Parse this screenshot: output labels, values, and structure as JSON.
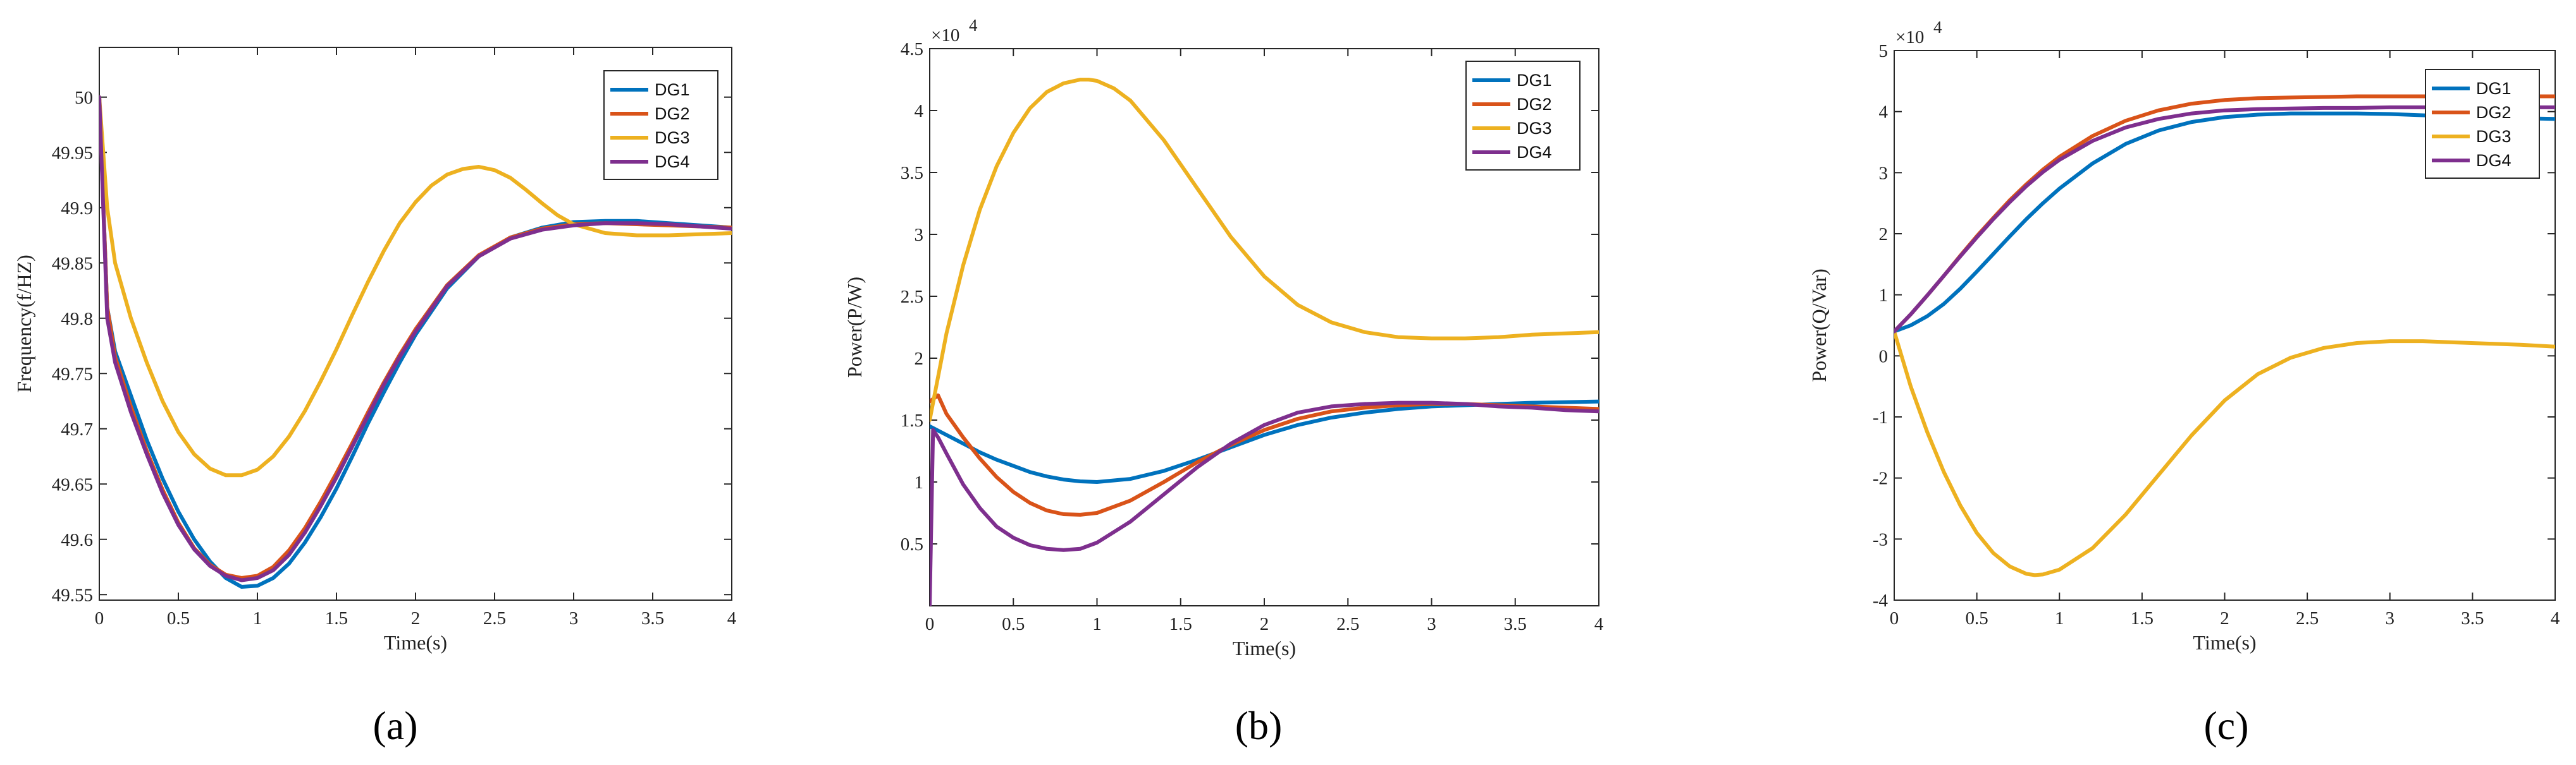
{
  "chart_data": [
    {
      "type": "line",
      "panel_label": "a",
      "panel_label_text": "(a)",
      "xlabel": "Time(s)",
      "ylabel": "Frequency(f/HZ)",
      "xlim": [
        0,
        4
      ],
      "ylim": [
        49.545,
        50.045
      ],
      "xticks": [
        0,
        0.5,
        1,
        1.5,
        2,
        2.5,
        3,
        3.5,
        4
      ],
      "xtick_labels": [
        "0",
        "0.5",
        "1",
        "1.5",
        "2",
        "2.5",
        "3",
        "3.5",
        "4"
      ],
      "yticks": [
        49.55,
        49.6,
        49.65,
        49.7,
        49.75,
        49.8,
        49.85,
        49.9,
        49.95,
        50
      ],
      "ytick_labels": [
        "49.55",
        "49.6",
        "49.65",
        "49.7",
        "49.75",
        "49.8",
        "49.85",
        "49.9",
        "49.95",
        "50"
      ],
      "exponent_label": "",
      "legend_position": "top-right",
      "series": [
        {
          "name": "DG1",
          "color": "#0072BD",
          "x": [
            0,
            0.05,
            0.1,
            0.2,
            0.3,
            0.4,
            0.5,
            0.6,
            0.7,
            0.8,
            0.9,
            1.0,
            1.1,
            1.2,
            1.3,
            1.4,
            1.5,
            1.6,
            1.7,
            1.8,
            1.9,
            2.0,
            2.2,
            2.4,
            2.6,
            2.8,
            3.0,
            3.2,
            3.4,
            3.6,
            3.8,
            4.0
          ],
          "values": [
            50.0,
            49.81,
            49.77,
            49.73,
            49.69,
            49.655,
            49.625,
            49.6,
            49.58,
            49.565,
            49.557,
            49.558,
            49.565,
            49.578,
            49.597,
            49.62,
            49.646,
            49.675,
            49.705,
            49.733,
            49.76,
            49.785,
            49.827,
            49.856,
            49.873,
            49.882,
            49.887,
            49.888,
            49.888,
            49.886,
            49.884,
            49.882
          ]
        },
        {
          "name": "DG2",
          "color": "#D95319",
          "x": [
            0,
            0.05,
            0.1,
            0.2,
            0.3,
            0.4,
            0.5,
            0.6,
            0.7,
            0.8,
            0.9,
            1.0,
            1.1,
            1.2,
            1.3,
            1.4,
            1.5,
            1.6,
            1.7,
            1.8,
            1.9,
            2.0,
            2.2,
            2.4,
            2.6,
            2.8,
            3.0,
            3.2,
            3.4,
            3.6,
            3.8,
            4.0
          ],
          "values": [
            50.0,
            49.81,
            49.765,
            49.72,
            49.68,
            49.645,
            49.615,
            49.592,
            49.577,
            49.568,
            49.565,
            49.567,
            49.575,
            49.59,
            49.61,
            49.634,
            49.66,
            49.687,
            49.715,
            49.742,
            49.767,
            49.79,
            49.83,
            49.857,
            49.873,
            49.881,
            49.885,
            49.886,
            49.885,
            49.884,
            49.883,
            49.882
          ]
        },
        {
          "name": "DG3",
          "color": "#EDB120",
          "x": [
            0,
            0.05,
            0.1,
            0.2,
            0.3,
            0.4,
            0.5,
            0.6,
            0.7,
            0.8,
            0.9,
            1.0,
            1.1,
            1.2,
            1.3,
            1.4,
            1.5,
            1.6,
            1.7,
            1.8,
            1.9,
            2.0,
            2.1,
            2.2,
            2.3,
            2.4,
            2.5,
            2.6,
            2.7,
            2.8,
            2.9,
            3.0,
            3.2,
            3.4,
            3.6,
            3.8,
            4.0
          ],
          "values": [
            50.0,
            49.9,
            49.85,
            49.8,
            49.76,
            49.725,
            49.697,
            49.677,
            49.664,
            49.658,
            49.658,
            49.663,
            49.675,
            49.693,
            49.716,
            49.743,
            49.772,
            49.803,
            49.833,
            49.861,
            49.886,
            49.905,
            49.92,
            49.93,
            49.935,
            49.937,
            49.934,
            49.927,
            49.916,
            49.904,
            49.893,
            49.885,
            49.877,
            49.875,
            49.875,
            49.876,
            49.877
          ]
        },
        {
          "name": "DG4",
          "color": "#7E2F8E",
          "x": [
            0,
            0.05,
            0.1,
            0.2,
            0.3,
            0.4,
            0.5,
            0.6,
            0.7,
            0.8,
            0.9,
            1.0,
            1.1,
            1.2,
            1.3,
            1.4,
            1.5,
            1.6,
            1.7,
            1.8,
            1.9,
            2.0,
            2.2,
            2.4,
            2.6,
            2.8,
            3.0,
            3.2,
            3.4,
            3.6,
            3.8,
            4.0
          ],
          "values": [
            50.0,
            49.8,
            49.76,
            49.715,
            49.677,
            49.642,
            49.613,
            49.591,
            49.576,
            49.567,
            49.563,
            49.565,
            49.572,
            49.586,
            49.606,
            49.63,
            49.656,
            49.684,
            49.712,
            49.74,
            49.765,
            49.788,
            49.829,
            49.856,
            49.872,
            49.88,
            49.884,
            49.886,
            49.886,
            49.885,
            49.883,
            49.881
          ]
        }
      ]
    },
    {
      "type": "line",
      "panel_label": "b",
      "panel_label_text": "(b)",
      "xlabel": "Time(s)",
      "ylabel": "Power(P/W)",
      "xlim": [
        0,
        4
      ],
      "ylim": [
        0,
        45000
      ],
      "xticks": [
        0,
        0.5,
        1,
        1.5,
        2,
        2.5,
        3,
        3.5,
        4
      ],
      "xtick_labels": [
        "0",
        "0.5",
        "1",
        "1.5",
        "2",
        "2.5",
        "3",
        "3.5",
        "4"
      ],
      "yticks": [
        5000,
        10000,
        15000,
        20000,
        25000,
        30000,
        35000,
        40000,
        45000
      ],
      "ytick_labels": [
        "0.5",
        "1",
        "1.5",
        "2",
        "2.5",
        "3",
        "3.5",
        "4",
        "4.5"
      ],
      "exponent_label": "×10",
      "exponent_power": "4",
      "legend_position": "top-right",
      "series": [
        {
          "name": "DG1",
          "color": "#0072BD",
          "x": [
            0,
            0.1,
            0.2,
            0.3,
            0.4,
            0.5,
            0.6,
            0.7,
            0.8,
            0.9,
            1.0,
            1.2,
            1.4,
            1.6,
            1.8,
            2.0,
            2.2,
            2.4,
            2.6,
            2.8,
            3.0,
            3.2,
            3.4,
            3.6,
            3.8,
            4.0
          ],
          "values": [
            14500,
            13800,
            13100,
            12400,
            11800,
            11300,
            10800,
            10450,
            10200,
            10050,
            10000,
            10250,
            10900,
            11800,
            12800,
            13800,
            14600,
            15200,
            15600,
            15900,
            16100,
            16200,
            16300,
            16400,
            16450,
            16500
          ]
        },
        {
          "name": "DG2",
          "color": "#D95319",
          "x": [
            0,
            0.05,
            0.1,
            0.2,
            0.3,
            0.4,
            0.5,
            0.6,
            0.7,
            0.8,
            0.9,
            1.0,
            1.2,
            1.4,
            1.6,
            1.8,
            2.0,
            2.2,
            2.4,
            2.6,
            2.8,
            3.0,
            3.2,
            3.4,
            3.6,
            3.8,
            4.0
          ],
          "values": [
            16500,
            17000,
            15500,
            13600,
            11900,
            10400,
            9200,
            8300,
            7700,
            7400,
            7350,
            7500,
            8500,
            10000,
            11600,
            13000,
            14200,
            15100,
            15700,
            16000,
            16200,
            16300,
            16300,
            16200,
            16100,
            16000,
            15900
          ]
        },
        {
          "name": "DG3",
          "color": "#EDB120",
          "x": [
            0,
            0.1,
            0.2,
            0.3,
            0.4,
            0.5,
            0.6,
            0.7,
            0.8,
            0.9,
            0.95,
            1.0,
            1.1,
            1.2,
            1.4,
            1.6,
            1.8,
            2.0,
            2.2,
            2.4,
            2.6,
            2.8,
            3.0,
            3.2,
            3.4,
            3.6,
            3.8,
            4.0
          ],
          "values": [
            15000,
            22000,
            27500,
            32000,
            35500,
            38200,
            40200,
            41500,
            42200,
            42500,
            42500,
            42400,
            41800,
            40800,
            37600,
            33700,
            29800,
            26600,
            24300,
            22900,
            22100,
            21700,
            21600,
            21600,
            21700,
            21900,
            22000,
            22100
          ]
        },
        {
          "name": "DG4",
          "color": "#7E2F8E",
          "x": [
            0,
            0.02,
            0.05,
            0.1,
            0.2,
            0.3,
            0.4,
            0.5,
            0.6,
            0.7,
            0.8,
            0.9,
            1.0,
            1.2,
            1.4,
            1.6,
            1.8,
            2.0,
            2.2,
            2.4,
            2.6,
            2.8,
            3.0,
            3.2,
            3.4,
            3.6,
            3.8,
            4.0
          ],
          "values": [
            0,
            14200,
            13600,
            12300,
            9800,
            7900,
            6400,
            5500,
            4900,
            4600,
            4500,
            4600,
            5100,
            6800,
            9000,
            11200,
            13100,
            14600,
            15600,
            16100,
            16300,
            16400,
            16400,
            16300,
            16100,
            16000,
            15800,
            15700
          ]
        }
      ]
    },
    {
      "type": "line",
      "panel_label": "c",
      "panel_label_text": "(c)",
      "xlabel": "Time(s)",
      "ylabel": "Power(Q/Var)",
      "xlim": [
        0,
        4
      ],
      "ylim": [
        -40000,
        50000
      ],
      "xticks": [
        0,
        0.5,
        1,
        1.5,
        2,
        2.5,
        3,
        3.5,
        4
      ],
      "xtick_labels": [
        "0",
        "0.5",
        "1",
        "1.5",
        "2",
        "2.5",
        "3",
        "3.5",
        "4"
      ],
      "yticks": [
        -40000,
        -30000,
        -20000,
        -10000,
        0,
        10000,
        20000,
        30000,
        40000,
        50000
      ],
      "ytick_labels": [
        "-4",
        "-3",
        "-2",
        "-1",
        "0",
        "1",
        "2",
        "3",
        "4",
        "5"
      ],
      "exponent_label": "×10",
      "exponent_power": "4",
      "legend_position": "top-right",
      "series": [
        {
          "name": "DG1",
          "color": "#0072BD",
          "x": [
            0,
            0.1,
            0.2,
            0.3,
            0.4,
            0.5,
            0.6,
            0.7,
            0.8,
            0.9,
            1.0,
            1.2,
            1.4,
            1.6,
            1.8,
            2.0,
            2.2,
            2.4,
            2.6,
            2.8,
            3.0,
            3.2,
            3.4,
            3.6,
            3.8,
            4.0
          ],
          "values": [
            4000,
            5000,
            6500,
            8500,
            11000,
            13800,
            16700,
            19600,
            22400,
            25000,
            27400,
            31500,
            34700,
            36900,
            38300,
            39100,
            39500,
            39700,
            39700,
            39700,
            39600,
            39400,
            39200,
            39000,
            38900,
            38800
          ]
        },
        {
          "name": "DG2",
          "color": "#D95319",
          "x": [
            0,
            0.1,
            0.2,
            0.3,
            0.4,
            0.5,
            0.6,
            0.7,
            0.8,
            0.9,
            1.0,
            1.2,
            1.4,
            1.6,
            1.8,
            2.0,
            2.2,
            2.4,
            2.6,
            2.8,
            3.0,
            3.2,
            3.4,
            3.6,
            3.8,
            4.0
          ],
          "values": [
            4000,
            6800,
            9900,
            13100,
            16400,
            19600,
            22600,
            25500,
            28100,
            30500,
            32600,
            36000,
            38500,
            40200,
            41300,
            41900,
            42200,
            42300,
            42400,
            42500,
            42500,
            42500,
            42500,
            42500,
            42500,
            42500
          ]
        },
        {
          "name": "DG3",
          "color": "#EDB120",
          "x": [
            0,
            0.1,
            0.2,
            0.3,
            0.4,
            0.5,
            0.6,
            0.7,
            0.8,
            0.85,
            0.9,
            1.0,
            1.2,
            1.4,
            1.6,
            1.8,
            2.0,
            2.2,
            2.4,
            2.6,
            2.8,
            3.0,
            3.2,
            3.4,
            3.6,
            3.8,
            4.0
          ],
          "values": [
            4000,
            -5000,
            -12500,
            -19000,
            -24500,
            -29000,
            -32300,
            -34500,
            -35700,
            -35900,
            -35800,
            -35000,
            -31500,
            -26000,
            -19500,
            -13000,
            -7300,
            -3000,
            -300,
            1300,
            2100,
            2400,
            2400,
            2200,
            2000,
            1800,
            1500
          ]
        },
        {
          "name": "DG4",
          "color": "#7E2F8E",
          "x": [
            0,
            0.1,
            0.2,
            0.3,
            0.4,
            0.5,
            0.6,
            0.7,
            0.8,
            0.9,
            1.0,
            1.2,
            1.4,
            1.6,
            1.8,
            2.0,
            2.2,
            2.4,
            2.6,
            2.8,
            3.0,
            3.2,
            3.4,
            3.6,
            3.8,
            4.0
          ],
          "values": [
            4000,
            6800,
            9900,
            13100,
            16300,
            19400,
            22400,
            25200,
            27800,
            30100,
            32100,
            35200,
            37400,
            38800,
            39700,
            40200,
            40400,
            40500,
            40600,
            40600,
            40700,
            40700,
            40700,
            40700,
            40700,
            40700
          ]
        }
      ]
    }
  ]
}
